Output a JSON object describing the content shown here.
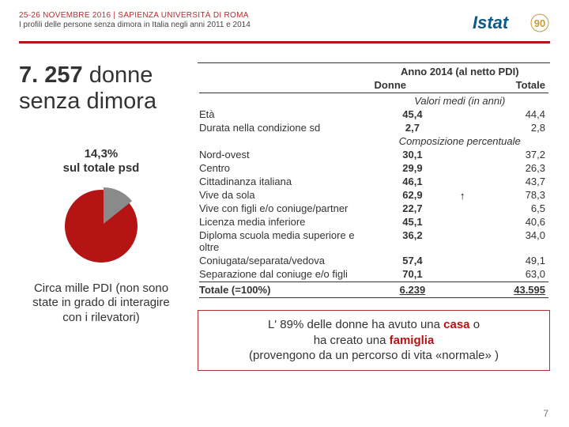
{
  "header": {
    "line1": "25-26 NOVEMBRE 2016 | SAPIENZA UNIVERSITÀ DI ROMA",
    "line2": "I profili delle persone senza dimora in Italia negli anni 2011 e 2014",
    "logo_text": "Istat",
    "logo_badge": "90",
    "logo_color": "#0b5a8a",
    "logo_accent": "#c89a3a"
  },
  "left": {
    "big_number": "7. 257",
    "big_word1": "donne",
    "big_line2": "senza dimora",
    "stat_pct": "14,3%",
    "stat_sub": "sul totale psd",
    "pie": {
      "slice_pct": 14.3,
      "slice_color": "#8a8a8a",
      "rest_color": "#b41414",
      "bg": "#ffffff"
    },
    "footnote_l1": "Circa mille PDI (non sono",
    "footnote_l2": "state in grado di interagire",
    "footnote_l3": "con i rilevatori)"
  },
  "table": {
    "header_top": "Anno 2014 (al netto PDI)",
    "col_donne": "Donne",
    "col_totale": "Totale",
    "section1_title": "Valori medi (in anni)",
    "section2_title": "Composizione percentuale",
    "rows1": [
      {
        "label": "Età",
        "donne": "45,4",
        "totale": "44,4"
      },
      {
        "label": "Durata nella condizione sd",
        "donne": "2,7",
        "totale": "2,8"
      }
    ],
    "rows2": [
      {
        "label": "Nord-ovest",
        "donne": "30,1",
        "totale": "37,2"
      },
      {
        "label": "Centro",
        "donne": "29,9",
        "totale": "26,3"
      },
      {
        "label": "Cittadinanza italiana",
        "donne": "46,1",
        "totale": "43,7"
      },
      {
        "label": "Vive da sola",
        "donne": "62,9",
        "totale": "78,3",
        "arrow": true
      },
      {
        "label": "Vive con figli e/o coniuge/partner",
        "donne": "22,7",
        "totale": "6,5"
      },
      {
        "label": "Licenza media inferiore",
        "donne": "45,1",
        "totale": "40,6"
      },
      {
        "label": "Diploma scuola media superiore e oltre",
        "donne": "36,2",
        "totale": "34,0"
      },
      {
        "label": "Coniugata/separata/vedova",
        "donne": "57,4",
        "totale": "49,1"
      },
      {
        "label": "Separazione dal coniuge e/o figli",
        "donne": "70,1",
        "totale": "63,0"
      }
    ],
    "total_row": {
      "label": "Totale (=100%)",
      "donne": "6.239",
      "totale": "43.595"
    }
  },
  "callout": {
    "t1": "L' 89% delle donne ha avuto una ",
    "em1": "casa",
    "t2": " o",
    "t3": "ha creato una ",
    "em2": "famiglia",
    "t4": "(provengono da un percorso di vita «normale» )"
  },
  "page_number": "7",
  "colors": {
    "rule": "#b41414",
    "border": "#b03030"
  }
}
